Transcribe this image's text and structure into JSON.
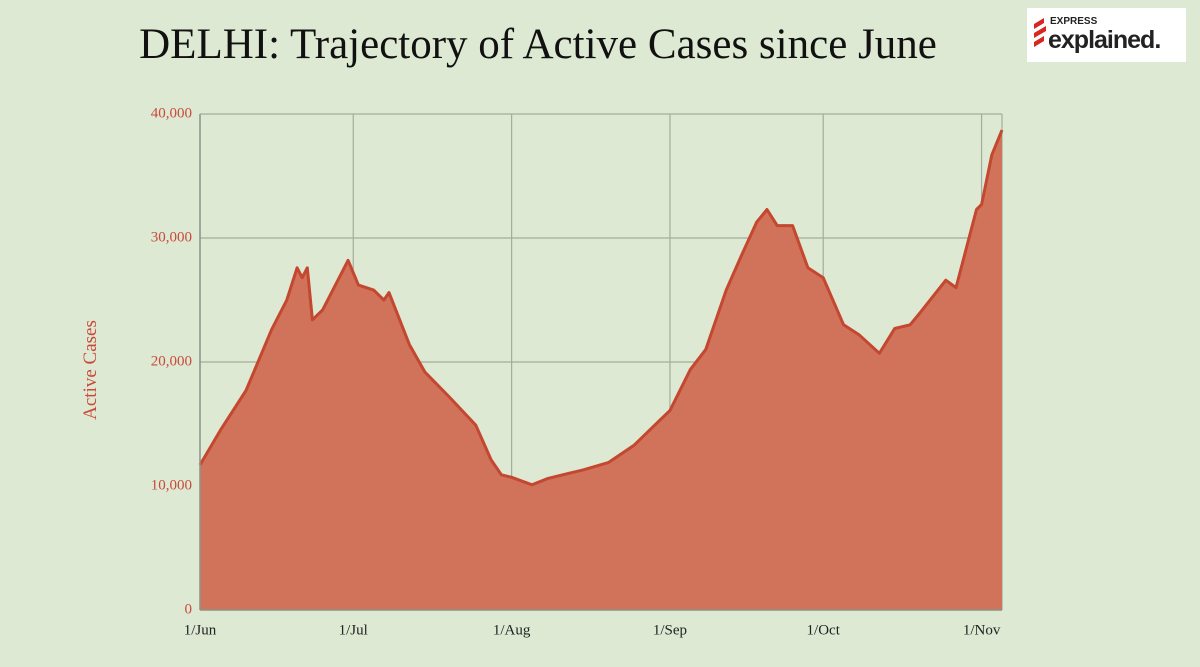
{
  "chart_data": {
    "type": "area",
    "title": "DELHI: Trajectory of Active Cases since June",
    "brand": {
      "top": "EXPRESS",
      "main": "explained."
    },
    "ylabel": "Active Cases",
    "x": [
      "1/Jun",
      "5/Jun",
      "10/Jun",
      "15/Jun",
      "18/Jun",
      "20/Jun",
      "21/Jun",
      "22/Jun",
      "23/Jun",
      "25/Jun",
      "28/Jun",
      "30/Jun",
      "2/Jul",
      "5/Jul",
      "7/Jul",
      "8/Jul",
      "12/Jul",
      "15/Jul",
      "20/Jul",
      "25/Jul",
      "28/Jul",
      "30/Jul",
      "1/Aug",
      "5/Aug",
      "8/Aug",
      "12/Aug",
      "15/Aug",
      "20/Aug",
      "25/Aug",
      "30/Aug",
      "1/Sep",
      "5/Sep",
      "8/Sep",
      "12/Sep",
      "15/Sep",
      "18/Sep",
      "20/Sep",
      "22/Sep",
      "25/Sep",
      "28/Sep",
      "1/Oct",
      "5/Oct",
      "8/Oct",
      "12/Oct",
      "15/Oct",
      "18/Oct",
      "20/Oct",
      "25/Oct",
      "27/Oct",
      "31/Oct",
      "1/Nov",
      "3/Nov",
      "5/Nov"
    ],
    "values": [
      11700,
      14500,
      17700,
      22600,
      25000,
      27600,
      26800,
      27600,
      23400,
      24200,
      26600,
      28200,
      26200,
      25800,
      25000,
      25600,
      21400,
      19200,
      17100,
      14900,
      12100,
      10900,
      10700,
      10100,
      10600,
      11000,
      11300,
      11900,
      13300,
      15300,
      16100,
      19400,
      21000,
      25800,
      28600,
      31300,
      32300,
      31000,
      31000,
      27600,
      26800,
      23000,
      22200,
      20700,
      22700,
      23000,
      24000,
      26600,
      26000,
      32300,
      32700,
      36700,
      38700
    ],
    "color": "#d0735a",
    "line_color": "#c4472f",
    "xlim": [
      "1/Jun",
      "5/Nov"
    ],
    "xticks": [
      "1/Jun",
      "1/Jul",
      "1/Aug",
      "1/Sep",
      "1/Oct",
      "1/Nov"
    ],
    "ylim": [
      0,
      40000
    ],
    "yticks": [
      0,
      {
        "value": 10000,
        "label": "10,000"
      },
      {
        "value": 20000,
        "label": "20,000"
      },
      {
        "value": 30000,
        "label": "30,000"
      },
      {
        "value": 40000,
        "label": "40,000"
      }
    ],
    "grid": true
  }
}
